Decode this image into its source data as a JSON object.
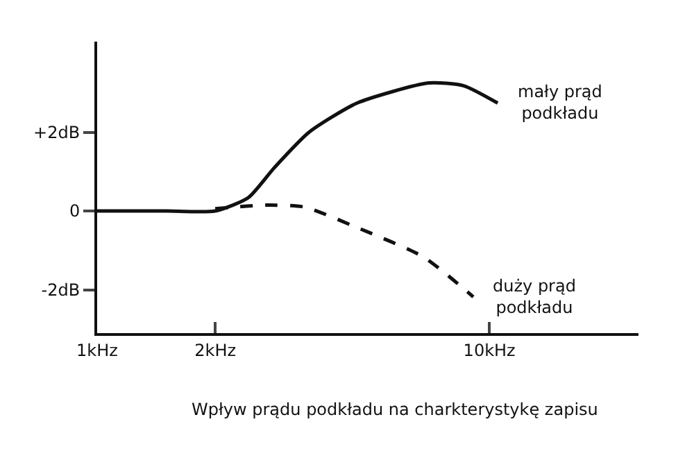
{
  "chart_data": {
    "type": "line",
    "title": "Wpływ prądu podkładu na charkterystykę zapisu",
    "log": "x",
    "xlim": [
      1,
      24
    ],
    "xticks": [
      {
        "value": 1,
        "label": "1kHz"
      },
      {
        "value": 2,
        "label": "2kHz"
      },
      {
        "value": 10,
        "label": "10kHz"
      }
    ],
    "ylim": [
      -3.1,
      4.3
    ],
    "yticks": [
      {
        "value": -2,
        "label": "-2dB"
      },
      0,
      {
        "value": 2,
        "label": "+2dB"
      }
    ],
    "legend": false,
    "marker": "none",
    "series": [
      {
        "name": "mały prąd\npodkładu",
        "color": "#111111",
        "line_style": "solid",
        "x": [
          1,
          1.5,
          2,
          2.43,
          2.83,
          3.47,
          4.6,
          7.0,
          8.6,
          10.5
        ],
        "values": [
          0,
          0,
          0,
          0.34,
          1.1,
          2.0,
          2.74,
          3.25,
          3.18,
          2.74
        ]
      },
      {
        "name": "duży prąd\npodkładu",
        "color": "#111111",
        "line_style": "dashed",
        "x": [
          2,
          2.7,
          3.38,
          4.6,
          6.8,
          9.1
        ],
        "values": [
          0.06,
          0.15,
          0.1,
          -0.42,
          -1.17,
          -2.18
        ]
      }
    ]
  }
}
